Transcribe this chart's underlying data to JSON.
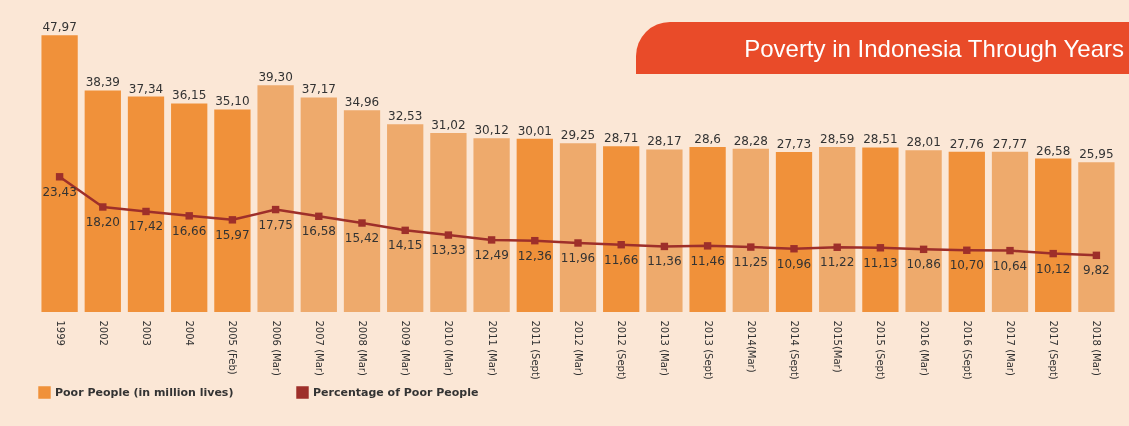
{
  "chart_data": {
    "type": "bar",
    "title": "Poverty in Indonesia Through Years",
    "categories": [
      "1999",
      "2002",
      "2003",
      "2004",
      "2005 (Feb)",
      "2006 (Mar)",
      "2007 (Mar)",
      "2008 (Mar)",
      "2009 (Mar)",
      "2010 (Mar)",
      "2011 (Mar)",
      "2011 (Sept)",
      "2012 (Mar)",
      "2012 (Sept)",
      "2013 (Mar)",
      "2013 (Sept)",
      "2014(Mar)",
      "2014 (Sept)",
      "2015(Mar)",
      "2015 (Sept)",
      "2016 (Mar)",
      "2016 (Sept)",
      "2017 (Mar)",
      "2017 (Sept)",
      "2018 (Mar)"
    ],
    "series": [
      {
        "name": "Poor People (in million lives)",
        "color": "#f0913a",
        "colors": [
          "#f0913a",
          "#f0913a",
          "#f0913a",
          "#f0913a",
          "#f0913a",
          "#eeaa6c",
          "#eeaa6c",
          "#eeaa6c",
          "#eeaa6c",
          "#eeaa6c",
          "#eeaa6c",
          "#f0913a",
          "#eeaa6c",
          "#f0913a",
          "#eeaa6c",
          "#f0913a",
          "#eeaa6c",
          "#f0913a",
          "#eeaa6c",
          "#f0913a",
          "#eeaa6c",
          "#f0913a",
          "#eeaa6c",
          "#f0913a",
          "#eeaa6c"
        ],
        "values": [
          47.97,
          38.39,
          37.34,
          36.15,
          35.1,
          39.3,
          37.17,
          34.96,
          32.53,
          31.02,
          30.12,
          30.01,
          29.25,
          28.71,
          28.17,
          28.6,
          28.28,
          27.73,
          28.59,
          28.51,
          28.01,
          27.76,
          27.77,
          26.58,
          25.95
        ],
        "value_labels": [
          "47,97",
          "38,39",
          "37,34",
          "36,15",
          "35,10",
          "39,30",
          "37,17",
          "34,96",
          "32,53",
          "31,02",
          "30,12",
          "30,01",
          "29,25",
          "28,71",
          "28,17",
          "28,6",
          "28,28",
          "27,73",
          "28,59",
          "28,51",
          "28,01",
          "27,76",
          "27,77",
          "26,58",
          "25,95"
        ]
      },
      {
        "name": "Percentage of Poor People",
        "type": "line",
        "color": "#9e2f2a",
        "values": [
          23.43,
          18.2,
          17.42,
          16.66,
          15.97,
          17.75,
          16.58,
          15.42,
          14.15,
          13.33,
          12.49,
          12.36,
          11.96,
          11.66,
          11.36,
          11.46,
          11.25,
          10.96,
          11.22,
          11.13,
          10.86,
          10.7,
          10.64,
          10.12,
          9.82
        ],
        "value_labels": [
          "23,43",
          "18,20",
          "17,42",
          "16,66",
          "15,97",
          "17,75",
          "16,58",
          "15,42",
          "14,15",
          "13,33",
          "12,49",
          "12,36",
          "11,96",
          "11,66",
          "11,36",
          "11,46",
          "11,25",
          "10,96",
          "11,22",
          "11,13",
          "10,86",
          "10,70",
          "10,64",
          "10,12",
          "9,82"
        ]
      }
    ],
    "ylim": [
      0,
      48
    ],
    "tick_labels": "x",
    "marker": "square",
    "line_style": "solid",
    "legend": "bottom",
    "grid": false
  }
}
